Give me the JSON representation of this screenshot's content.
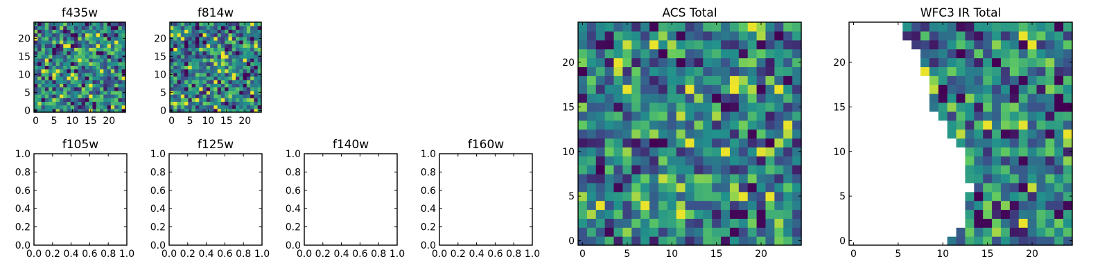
{
  "figure": {
    "colors": {
      "colormap": [
        "#440154",
        "#3b528b",
        "#21918c",
        "#5ec962",
        "#fde725"
      ],
      "axis": "#000000",
      "background": "#ffffff",
      "empty_cell": "#ffffff"
    },
    "panels": {
      "f435w": {
        "title": "f435w",
        "kind": "image",
        "cols": 25,
        "rows": 25,
        "xlim": [
          -0.5,
          24.5
        ],
        "ylim": [
          -0.5,
          24.5
        ],
        "xticks": [
          0,
          5,
          10,
          15,
          20
        ],
        "yticks": [
          0,
          5,
          10,
          15,
          20
        ],
        "seed": 11,
        "mask": "none"
      },
      "f814w": {
        "title": "f814w",
        "kind": "image",
        "cols": 25,
        "rows": 25,
        "xlim": [
          -0.5,
          24.5
        ],
        "ylim": [
          -0.5,
          24.5
        ],
        "xticks": [
          0,
          5,
          10,
          15,
          20
        ],
        "yticks": [
          0,
          5,
          10,
          15,
          20
        ],
        "seed": 23,
        "mask": "none"
      },
      "f105w": {
        "title": "f105w",
        "kind": "empty",
        "xlim": [
          0,
          1
        ],
        "ylim": [
          0,
          1
        ],
        "xticks": [
          "0.0",
          "0.2",
          "0.4",
          "0.6",
          "0.8",
          "1.0"
        ],
        "yticks": [
          "0.0",
          "0.2",
          "0.4",
          "0.6",
          "0.8",
          "1.0"
        ]
      },
      "f125w": {
        "title": "f125w",
        "kind": "empty",
        "xlim": [
          0,
          1
        ],
        "ylim": [
          0,
          1
        ],
        "xticks": [
          "0.0",
          "0.2",
          "0.4",
          "0.6",
          "0.8",
          "1.0"
        ],
        "yticks": [
          "0.0",
          "0.2",
          "0.4",
          "0.6",
          "0.8",
          "1.0"
        ]
      },
      "f140w": {
        "title": "f140w",
        "kind": "empty",
        "xlim": [
          0,
          1
        ],
        "ylim": [
          0,
          1
        ],
        "xticks": [
          "0.0",
          "0.2",
          "0.4",
          "0.6",
          "0.8",
          "1.0"
        ],
        "yticks": [
          "0.0",
          "0.2",
          "0.4",
          "0.6",
          "0.8",
          "1.0"
        ]
      },
      "f160w": {
        "title": "f160w",
        "kind": "empty",
        "xlim": [
          0,
          1
        ],
        "ylim": [
          0,
          1
        ],
        "xticks": [
          "0.0",
          "0.2",
          "0.4",
          "0.6",
          "0.8",
          "1.0"
        ],
        "yticks": [
          "0.0",
          "0.2",
          "0.4",
          "0.6",
          "0.8",
          "1.0"
        ]
      },
      "acs_total": {
        "title": "ACS Total",
        "kind": "image",
        "cols": 25,
        "rows": 25,
        "xlim": [
          -0.5,
          24.5
        ],
        "ylim": [
          -0.5,
          24.5
        ],
        "xticks": [
          0,
          5,
          10,
          15,
          20
        ],
        "yticks": [
          0,
          5,
          10,
          15,
          20
        ],
        "seed": 37,
        "mask": "none"
      },
      "wfc3_ir_total": {
        "title": "WFC3 IR Total",
        "kind": "image",
        "cols": 25,
        "rows": 25,
        "xlim": [
          -0.5,
          24.5
        ],
        "ylim": [
          -0.5,
          24.5
        ],
        "xticks": [
          0,
          5,
          10,
          15,
          20
        ],
        "yticks": [
          0,
          5,
          10,
          15,
          20
        ],
        "seed": 53,
        "mask": "left-edge"
      }
    }
  },
  "chart_data": [
    {
      "type": "heatmap",
      "title": "f435w",
      "x_range": [
        0,
        24
      ],
      "y_range": [
        0,
        24
      ],
      "colormap": "viridis"
    },
    {
      "type": "heatmap",
      "title": "f814w",
      "x_range": [
        0,
        24
      ],
      "y_range": [
        0,
        24
      ],
      "colormap": "viridis"
    },
    {
      "type": "scatter",
      "title": "f105w",
      "x": [],
      "y": [],
      "xlim": [
        0,
        1
      ],
      "ylim": [
        0,
        1
      ]
    },
    {
      "type": "scatter",
      "title": "f125w",
      "x": [],
      "y": [],
      "xlim": [
        0,
        1
      ],
      "ylim": [
        0,
        1
      ]
    },
    {
      "type": "scatter",
      "title": "f140w",
      "x": [],
      "y": [],
      "xlim": [
        0,
        1
      ],
      "ylim": [
        0,
        1
      ]
    },
    {
      "type": "scatter",
      "title": "f160w",
      "x": [],
      "y": [],
      "xlim": [
        0,
        1
      ],
      "ylim": [
        0,
        1
      ]
    },
    {
      "type": "heatmap",
      "title": "ACS Total",
      "x_range": [
        0,
        24
      ],
      "y_range": [
        0,
        24
      ],
      "colormap": "viridis"
    },
    {
      "type": "heatmap",
      "title": "WFC3 IR Total",
      "x_range": [
        0,
        24
      ],
      "y_range": [
        0,
        24
      ],
      "colormap": "viridis",
      "note": "left portion masked (white)"
    }
  ]
}
